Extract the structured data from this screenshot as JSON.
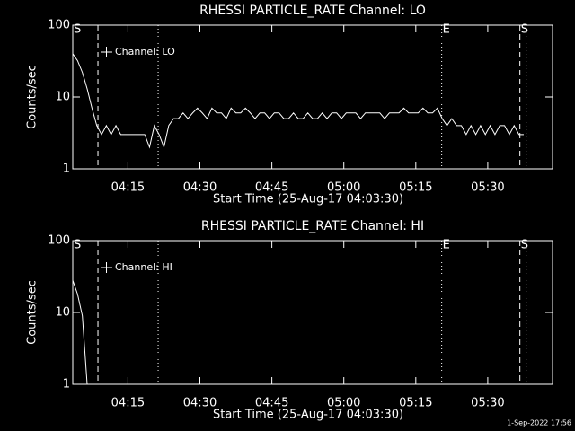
{
  "chart_data": [
    {
      "type": "line",
      "title": "RHESSI PARTICLE_RATE Channel: LO",
      "x_label": "Start Time (25-Aug-17 04:03:30)",
      "y_label": "Counts/sec",
      "log_y": true,
      "ylim": [
        1,
        100
      ],
      "yticks": [
        1,
        10,
        100
      ],
      "xlim": [
        3.5,
        103.5
      ],
      "xticks": [
        {
          "value": 15,
          "label": "04:15"
        },
        {
          "value": 30,
          "label": "04:30"
        },
        {
          "value": 45,
          "label": "04:45"
        },
        {
          "value": 60,
          "label": "05:00"
        },
        {
          "value": 75,
          "label": "05:15"
        },
        {
          "value": 90,
          "label": "05:30"
        }
      ],
      "x": [
        3.5,
        4.5,
        5.5,
        6.5,
        7.5,
        8.5,
        9.5,
        10.5,
        11.5,
        12.5,
        13.5,
        14.5,
        15.5,
        16.5,
        17.5,
        18.5,
        19.5,
        20.5,
        21.5,
        22.5,
        23.5,
        24.5,
        25.5,
        26.5,
        27.5,
        28.5,
        29.5,
        30.5,
        31.5,
        32.5,
        33.5,
        34.5,
        35.5,
        36.5,
        37.5,
        38.5,
        39.5,
        40.5,
        41.5,
        42.5,
        43.5,
        44.5,
        45.5,
        46.5,
        47.5,
        48.5,
        49.5,
        50.5,
        51.5,
        52.5,
        53.5,
        54.5,
        55.5,
        56.5,
        57.5,
        58.5,
        59.5,
        60.5,
        61.5,
        62.5,
        63.5,
        64.5,
        65.5,
        66.5,
        67.5,
        68.5,
        69.5,
        70.5,
        71.5,
        72.5,
        73.5,
        74.5,
        75.5,
        76.5,
        77.5,
        78.5,
        79.5,
        80.5,
        81.5,
        82.5,
        83.5,
        84.5,
        85.5,
        86.5,
        87.5,
        88.5,
        89.5,
        90.5,
        91.5,
        92.5,
        93.5,
        94.5,
        95.5,
        96.5,
        97.5
      ],
      "series": [
        {
          "name": "Channel: LO",
          "color": "#ffffff",
          "values": [
            40,
            32,
            22,
            13,
            7,
            4,
            3,
            4,
            3,
            4,
            3,
            3,
            3,
            3,
            3,
            3,
            2,
            4,
            3,
            2,
            4,
            5,
            5,
            6,
            5,
            6,
            7,
            6,
            5,
            7,
            6,
            6,
            5,
            7,
            6,
            6,
            7,
            6,
            5,
            6,
            6,
            5,
            6,
            6,
            5,
            5,
            6,
            5,
            5,
            6,
            5,
            5,
            6,
            5,
            6,
            6,
            5,
            6,
            6,
            6,
            5,
            6,
            6,
            6,
            6,
            5,
            6,
            6,
            6,
            7,
            6,
            6,
            6,
            7,
            6,
            6,
            7,
            5,
            4,
            5,
            4,
            4,
            3,
            4,
            3,
            4,
            3,
            4,
            3,
            4,
            4,
            3,
            4,
            3,
            3
          ]
        }
      ],
      "vlines": [
        {
          "x": 8.75,
          "style": "dashed"
        },
        {
          "x": 21.3,
          "style": "dotted"
        },
        {
          "x": 80.4,
          "style": "dotted"
        },
        {
          "x": 96.7,
          "style": "dashed"
        },
        {
          "x": 98,
          "style": "dotted"
        }
      ],
      "annotations": [
        {
          "x": 3.5,
          "label": "S"
        },
        {
          "x": 80.4,
          "label": "E"
        },
        {
          "x": 96.7,
          "label": "S"
        }
      ]
    },
    {
      "type": "line",
      "title": "RHESSI PARTICLE_RATE Channel: HI",
      "x_label": "Start Time (25-Aug-17 04:03:30)",
      "y_label": "Counts/sec",
      "log_y": true,
      "ylim": [
        1,
        100
      ],
      "yticks": [
        1,
        10,
        100
      ],
      "xlim": [
        3.5,
        103.5
      ],
      "xticks": [
        {
          "value": 15,
          "label": "04:15"
        },
        {
          "value": 30,
          "label": "04:30"
        },
        {
          "value": 45,
          "label": "04:45"
        },
        {
          "value": 60,
          "label": "05:00"
        },
        {
          "value": 75,
          "label": "05:15"
        },
        {
          "value": 90,
          "label": "05:30"
        }
      ],
      "x": [
        3.5,
        4.5,
        5.5,
        6.5
      ],
      "series": [
        {
          "name": "Channel: HI",
          "color": "#ffffff",
          "values": [
            28,
            18,
            9,
            1
          ]
        }
      ],
      "vlines": [
        {
          "x": 8.75,
          "style": "dashed"
        },
        {
          "x": 21.3,
          "style": "dotted"
        },
        {
          "x": 80.4,
          "style": "dotted"
        },
        {
          "x": 96.7,
          "style": "dashed"
        },
        {
          "x": 98,
          "style": "dotted"
        }
      ],
      "annotations": [
        {
          "x": 3.5,
          "label": "S"
        },
        {
          "x": 80.4,
          "label": "E"
        },
        {
          "x": 96.7,
          "label": "S"
        }
      ]
    }
  ],
  "footer": "1-Sep-2022 17:56"
}
